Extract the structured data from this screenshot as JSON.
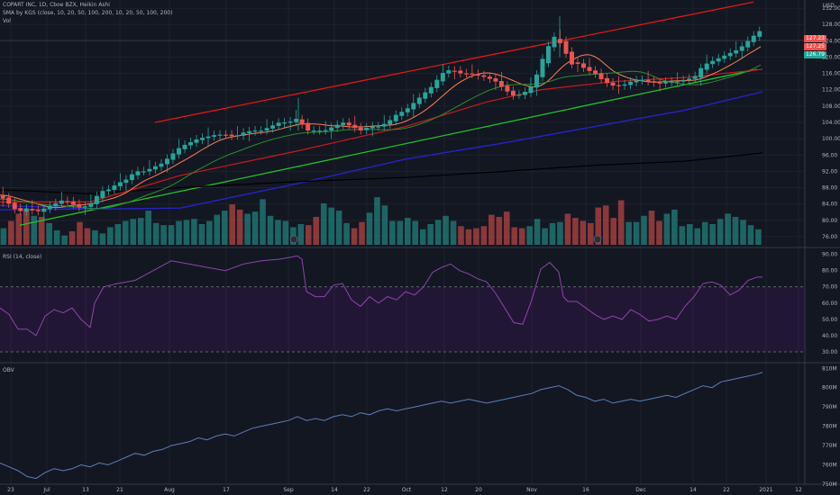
{
  "header": {
    "symbol_line": "COPART INC, 1D, Cboe BZX, Heikin Ashi",
    "study_line": "SMA by KGS (close, 10, 20, 50, 100, 200, 10, 20, 50, 100, 200)",
    "vol_label": "Vol",
    "currency": "USD"
  },
  "rsi_panel": {
    "title": "RSI (14, close)"
  },
  "obv_panel": {
    "title": "OBV"
  },
  "price_tags": {
    "last": "127.23",
    "tag2": "127.25",
    "tag3": "126.79"
  },
  "colors": {
    "background": "#131722",
    "up": "#26a69a",
    "down": "#ef5350",
    "channel": "#e01818",
    "trend_green": "#22c22a",
    "trend_blue": "#2424c8",
    "sma200": "#000000",
    "rsi": "#8e44ad",
    "obv": "#5b7fb8"
  },
  "chart_data": [
    {
      "type": "candlestick",
      "title": "COPART INC, 1D, Cboe BZX, Heikin Ashi",
      "ylim": [
        74,
        134
      ],
      "yticks": [
        "132.00",
        "128.00",
        "124.00",
        "120.00",
        "116.00",
        "112.00",
        "108.00",
        "104.00",
        "100.00",
        "96.00",
        "92.00",
        "88.00",
        "84.00",
        "80.00",
        "76.00"
      ],
      "xticks": [
        "23",
        "Jul",
        "13",
        "21",
        "Aug",
        "17",
        "Sep",
        "14",
        "22",
        "Oct",
        "12",
        "20",
        "Nov",
        "16",
        "Dec",
        "14",
        "22",
        "2021",
        "12"
      ],
      "close_profile": [
        [
          0,
          86
        ],
        [
          10,
          84
        ],
        [
          20,
          82
        ],
        [
          30,
          83
        ],
        [
          40,
          82
        ],
        [
          50,
          83
        ],
        [
          60,
          84
        ],
        [
          70,
          85
        ],
        [
          80,
          84
        ],
        [
          90,
          83
        ],
        [
          100,
          84
        ],
        [
          105,
          85
        ],
        [
          110,
          87
        ],
        [
          120,
          87.5
        ],
        [
          130,
          89
        ],
        [
          140,
          90
        ],
        [
          150,
          92
        ],
        [
          160,
          92
        ],
        [
          170,
          93
        ],
        [
          180,
          94
        ],
        [
          190,
          96
        ],
        [
          200,
          98
        ],
        [
          210,
          99
        ],
        [
          220,
          100
        ],
        [
          230,
          100.5
        ],
        [
          240,
          101
        ],
        [
          250,
          101
        ],
        [
          260,
          100.5
        ],
        [
          270,
          101.5
        ],
        [
          280,
          102
        ],
        [
          290,
          102
        ],
        [
          300,
          103
        ],
        [
          310,
          104
        ],
        [
          320,
          104
        ],
        [
          330,
          105
        ],
        [
          335,
          103.5
        ],
        [
          340,
          102
        ],
        [
          350,
          102
        ],
        [
          360,
          102
        ],
        [
          370,
          103
        ],
        [
          380,
          104
        ],
        [
          390,
          103
        ],
        [
          400,
          102
        ],
        [
          410,
          103
        ],
        [
          420,
          103
        ],
        [
          430,
          104
        ],
        [
          440,
          106
        ],
        [
          450,
          107
        ],
        [
          460,
          109
        ],
        [
          470,
          111
        ],
        [
          480,
          113
        ],
        [
          490,
          116
        ],
        [
          500,
          117
        ],
        [
          510,
          116
        ],
        [
          520,
          116
        ],
        [
          530,
          115.5
        ],
        [
          540,
          115
        ],
        [
          550,
          114
        ],
        [
          560,
          112
        ],
        [
          570,
          110.5
        ],
        [
          580,
          111
        ],
        [
          590,
          113
        ],
        [
          600,
          118
        ],
        [
          605,
          122
        ],
        [
          610,
          123
        ],
        [
          615,
          125
        ],
        [
          620,
          124
        ],
        [
          625,
          122
        ],
        [
          630,
          120
        ],
        [
          635,
          118
        ],
        [
          640,
          118.5
        ],
        [
          650,
          117
        ],
        [
          660,
          116
        ],
        [
          670,
          114
        ],
        [
          680,
          113
        ],
        [
          690,
          113
        ],
        [
          700,
          114
        ],
        [
          710,
          114.5
        ],
        [
          720,
          114
        ],
        [
          730,
          113.5
        ],
        [
          740,
          114
        ],
        [
          750,
          114
        ],
        [
          760,
          114.5
        ],
        [
          770,
          115
        ],
        [
          780,
          118
        ],
        [
          790,
          119
        ],
        [
          800,
          120
        ],
        [
          810,
          121
        ],
        [
          820,
          122
        ],
        [
          830,
          124
        ],
        [
          840,
          126
        ],
        [
          846,
          126.8
        ]
      ],
      "volume_profile": [
        16,
        23,
        30,
        35,
        28,
        27,
        21,
        14,
        9,
        13,
        22,
        16,
        14,
        11,
        17,
        20,
        23,
        25,
        26,
        33,
        21,
        19,
        19,
        23,
        24,
        25,
        20,
        23,
        29,
        33,
        39,
        34,
        30,
        32,
        44,
        28,
        24,
        23,
        17,
        20,
        19,
        27,
        40,
        36,
        33,
        21,
        16,
        22,
        31,
        46,
        38,
        23,
        23,
        26,
        23,
        15,
        20,
        24,
        28,
        23,
        18,
        15,
        16,
        18,
        29,
        27,
        32,
        17,
        16,
        18,
        25,
        16,
        21,
        22,
        30,
        26,
        23,
        21,
        36,
        38,
        26,
        43,
        22,
        22,
        28,
        33,
        23,
        30,
        34,
        18,
        20,
        16,
        22,
        20,
        25,
        30,
        27,
        24,
        19,
        15
      ],
      "series": [
        {
          "name": "SMA 10",
          "color": "#ff7f50"
        },
        {
          "name": "SMA 20",
          "color": "#2e8b2e"
        },
        {
          "name": "SMA 50",
          "color": "#cc1a1a"
        },
        {
          "name": "SMA 200",
          "color": "#000000"
        }
      ]
    },
    {
      "type": "line",
      "title": "RSI (14, close)",
      "ylim": [
        25,
        92
      ],
      "yticks": [
        "90.00",
        "80.00",
        "70.00",
        "60.00",
        "50.00",
        "40.00",
        "30.00"
      ],
      "levels": [
        70,
        30
      ],
      "values": [
        [
          0,
          57
        ],
        [
          10,
          53
        ],
        [
          20,
          44
        ],
        [
          30,
          44
        ],
        [
          40,
          40
        ],
        [
          50,
          52
        ],
        [
          60,
          56
        ],
        [
          70,
          54
        ],
        [
          80,
          57
        ],
        [
          90,
          50
        ],
        [
          100,
          45
        ],
        [
          105,
          60
        ],
        [
          115,
          70
        ],
        [
          130,
          72
        ],
        [
          150,
          74
        ],
        [
          170,
          80
        ],
        [
          190,
          86
        ],
        [
          210,
          84
        ],
        [
          230,
          82
        ],
        [
          250,
          80
        ],
        [
          270,
          84
        ],
        [
          290,
          86
        ],
        [
          310,
          87
        ],
        [
          330,
          89
        ],
        [
          335,
          87
        ],
        [
          340,
          67
        ],
        [
          350,
          64
        ],
        [
          360,
          64
        ],
        [
          370,
          71
        ],
        [
          380,
          72
        ],
        [
          390,
          62
        ],
        [
          400,
          58
        ],
        [
          410,
          64
        ],
        [
          420,
          60
        ],
        [
          430,
          64
        ],
        [
          440,
          62
        ],
        [
          450,
          67
        ],
        [
          460,
          65
        ],
        [
          470,
          70
        ],
        [
          480,
          79
        ],
        [
          490,
          82
        ],
        [
          500,
          84
        ],
        [
          510,
          80
        ],
        [
          520,
          78
        ],
        [
          530,
          75
        ],
        [
          540,
          73
        ],
        [
          550,
          66
        ],
        [
          560,
          57
        ],
        [
          570,
          48
        ],
        [
          580,
          47
        ],
        [
          590,
          62
        ],
        [
          600,
          81
        ],
        [
          610,
          85
        ],
        [
          620,
          79
        ],
        [
          625,
          64
        ],
        [
          630,
          61
        ],
        [
          640,
          61
        ],
        [
          650,
          57
        ],
        [
          660,
          53
        ],
        [
          670,
          50
        ],
        [
          680,
          52
        ],
        [
          690,
          50
        ],
        [
          700,
          56
        ],
        [
          710,
          53
        ],
        [
          720,
          49
        ],
        [
          730,
          50
        ],
        [
          740,
          52
        ],
        [
          750,
          50
        ],
        [
          760,
          58
        ],
        [
          770,
          64
        ],
        [
          780,
          72
        ],
        [
          790,
          73
        ],
        [
          800,
          71
        ],
        [
          810,
          65
        ],
        [
          820,
          68
        ],
        [
          830,
          74
        ],
        [
          840,
          76
        ],
        [
          846,
          76
        ]
      ]
    },
    {
      "type": "line",
      "title": "OBV",
      "ylim": [
        750,
        812
      ],
      "yticks": [
        "810M",
        "800M",
        "790M",
        "780M",
        "770M",
        "760M",
        "750M"
      ],
      "values": [
        [
          0,
          761
        ],
        [
          10,
          759
        ],
        [
          20,
          757
        ],
        [
          30,
          754
        ],
        [
          40,
          753
        ],
        [
          50,
          756
        ],
        [
          60,
          758
        ],
        [
          70,
          757
        ],
        [
          80,
          758
        ],
        [
          90,
          760
        ],
        [
          100,
          759
        ],
        [
          110,
          761
        ],
        [
          120,
          760
        ],
        [
          130,
          762
        ],
        [
          140,
          764
        ],
        [
          150,
          766
        ],
        [
          160,
          765
        ],
        [
          170,
          767
        ],
        [
          180,
          768
        ],
        [
          190,
          770
        ],
        [
          200,
          771
        ],
        [
          210,
          772
        ],
        [
          220,
          774
        ],
        [
          230,
          773
        ],
        [
          240,
          775
        ],
        [
          250,
          776
        ],
        [
          260,
          775
        ],
        [
          270,
          777
        ],
        [
          280,
          779
        ],
        [
          290,
          780
        ],
        [
          300,
          781
        ],
        [
          310,
          782
        ],
        [
          320,
          783
        ],
        [
          330,
          785
        ],
        [
          340,
          783
        ],
        [
          350,
          784
        ],
        [
          360,
          783
        ],
        [
          370,
          785
        ],
        [
          380,
          786
        ],
        [
          390,
          785
        ],
        [
          400,
          787
        ],
        [
          410,
          786
        ],
        [
          420,
          788
        ],
        [
          430,
          789
        ],
        [
          440,
          788
        ],
        [
          450,
          789
        ],
        [
          460,
          790
        ],
        [
          470,
          791
        ],
        [
          480,
          792
        ],
        [
          490,
          793
        ],
        [
          500,
          792
        ],
        [
          510,
          793
        ],
        [
          520,
          794
        ],
        [
          530,
          793
        ],
        [
          540,
          792
        ],
        [
          550,
          793
        ],
        [
          560,
          794
        ],
        [
          570,
          795
        ],
        [
          580,
          796
        ],
        [
          590,
          797
        ],
        [
          600,
          799
        ],
        [
          610,
          800
        ],
        [
          620,
          801
        ],
        [
          630,
          799
        ],
        [
          640,
          796
        ],
        [
          650,
          795
        ],
        [
          660,
          793
        ],
        [
          670,
          794
        ],
        [
          680,
          792
        ],
        [
          690,
          793
        ],
        [
          700,
          794
        ],
        [
          710,
          793
        ],
        [
          720,
          794
        ],
        [
          730,
          795
        ],
        [
          740,
          796
        ],
        [
          750,
          795
        ],
        [
          760,
          797
        ],
        [
          770,
          799
        ],
        [
          780,
          801
        ],
        [
          790,
          800
        ],
        [
          800,
          803
        ],
        [
          810,
          804
        ],
        [
          820,
          805
        ],
        [
          830,
          806
        ],
        [
          840,
          807
        ],
        [
          846,
          808
        ]
      ]
    }
  ]
}
